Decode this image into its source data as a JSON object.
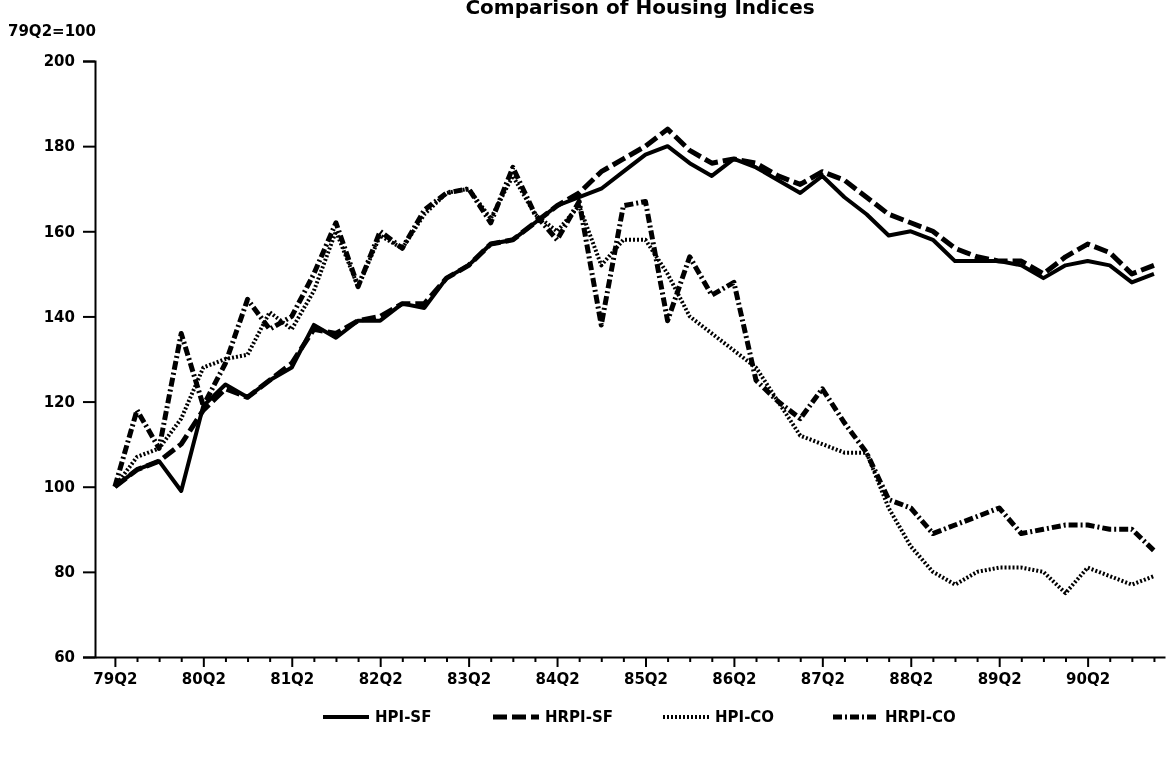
{
  "chart_data": {
    "type": "line",
    "title": "Comparison of Housing Indices",
    "ylabel": "79Q2=100",
    "categories": [
      "79Q2",
      null,
      null,
      null,
      "80Q2",
      null,
      null,
      null,
      "81Q2",
      null,
      null,
      null,
      "82Q2",
      null,
      null,
      null,
      "83Q2",
      null,
      null,
      null,
      "84Q2",
      null,
      null,
      null,
      "85Q2",
      null,
      null,
      null,
      "86Q2",
      null,
      null,
      null,
      "87Q2",
      null,
      null,
      null,
      "88Q2",
      null,
      null,
      null,
      "89Q2",
      null,
      null,
      null,
      "90Q2",
      null,
      null,
      null
    ],
    "ylim": [
      60,
      200
    ],
    "yticks": [
      60,
      80,
      100,
      120,
      140,
      160,
      180,
      200
    ],
    "grid": false,
    "legend": "bottom",
    "marker": "none",
    "series": [
      {
        "name": "HPI-SF",
        "color": "#000000",
        "line_style": "solid",
        "values": [
          100,
          104,
          106,
          99,
          119,
          124,
          121,
          125,
          128,
          138,
          135,
          139,
          139,
          143,
          142,
          149,
          152,
          157,
          158,
          162,
          166,
          168,
          170,
          174,
          178,
          180,
          176,
          173,
          177,
          175,
          172,
          169,
          173,
          168,
          164,
          159,
          160,
          158,
          153,
          153,
          153,
          152,
          149,
          152,
          153,
          152,
          148,
          150
        ]
      },
      {
        "name": "HRPI-SF",
        "color": "#000000",
        "line_style": "dashed",
        "values": [
          100,
          104,
          106,
          110,
          118,
          123,
          121,
          125,
          129,
          137,
          136,
          139,
          140,
          143,
          143,
          149,
          152,
          157,
          158,
          162,
          166,
          169,
          174,
          177,
          180,
          184,
          179,
          176,
          177,
          176,
          173,
          171,
          174,
          172,
          168,
          164,
          162,
          160,
          156,
          154,
          153,
          153,
          150,
          154,
          157,
          155,
          150,
          152
        ]
      },
      {
        "name": "HPI-CO",
        "color": "#000000",
        "line_style": "dotted",
        "values": [
          100,
          107,
          109,
          116,
          128,
          130,
          131,
          141,
          137,
          146,
          160,
          147,
          159,
          156,
          164,
          169,
          170,
          163,
          173,
          164,
          160,
          166,
          152,
          158,
          158,
          150,
          140,
          136,
          132,
          128,
          120,
          112,
          110,
          108,
          108,
          95,
          86,
          80,
          77,
          80,
          81,
          81,
          80,
          75,
          81,
          79,
          77,
          79
        ]
      },
      {
        "name": "HRPI-CO",
        "color": "#000000",
        "line_style": "dashdot",
        "values": [
          100,
          118,
          109,
          136,
          119,
          129,
          144,
          137,
          140,
          150,
          162,
          147,
          160,
          156,
          165,
          169,
          170,
          162,
          175,
          164,
          158,
          167,
          138,
          166,
          167,
          139,
          154,
          145,
          148,
          125,
          120,
          116,
          123,
          115,
          108,
          97,
          95,
          89,
          91,
          93,
          95,
          89,
          90,
          91,
          91,
          90,
          90,
          85
        ]
      }
    ]
  }
}
